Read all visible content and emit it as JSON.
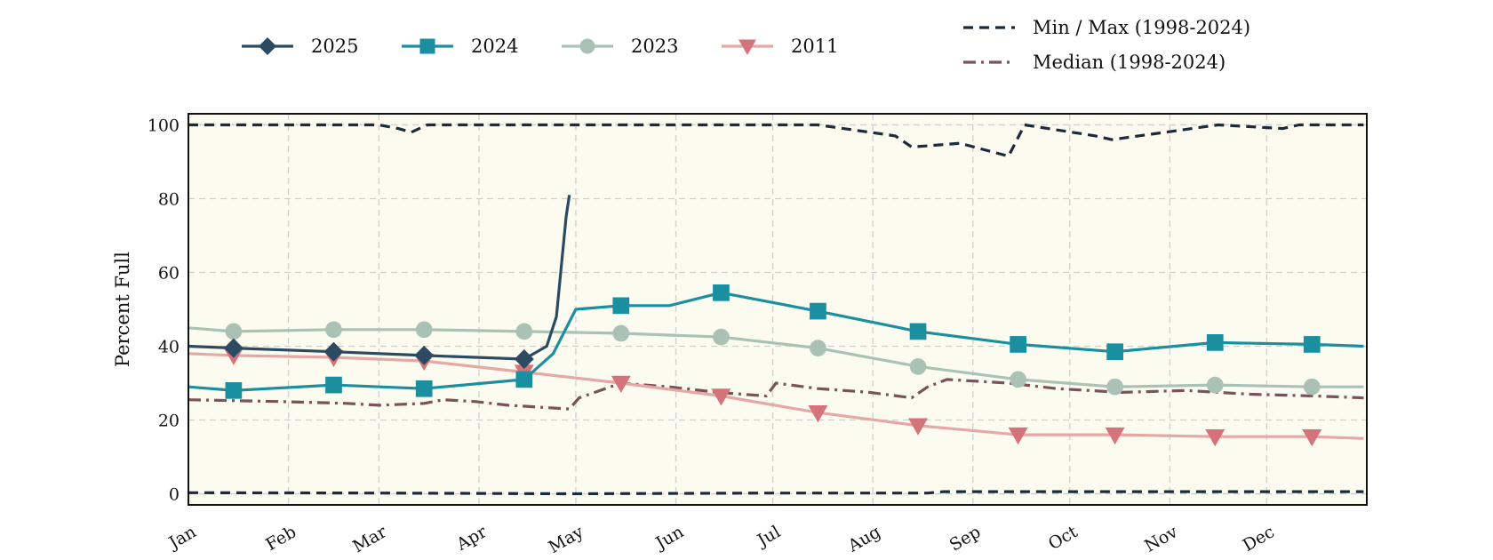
{
  "chart_data": {
    "type": "line",
    "title": "",
    "xlabel": "",
    "ylabel": "Percent Full",
    "ylim": [
      -3,
      103
    ],
    "x_ticks": [
      "Jan",
      "Feb",
      "Mar",
      "Apr",
      "May",
      "Jun",
      "Jul",
      "Aug",
      "Sep",
      "Oct",
      "Nov",
      "Dec"
    ],
    "y_ticks": [
      0,
      20,
      40,
      60,
      80,
      100
    ],
    "grid": true,
    "legend_placement": "top",
    "series": [
      {
        "name": "2025",
        "color": "#2d4a63",
        "style": "solid",
        "marker": "diamond",
        "x": [
          1,
          15,
          46,
          74,
          105,
          112,
          115,
          118,
          119,
          121
        ],
        "y": [
          40,
          39.5,
          38.5,
          37.5,
          36.5,
          40,
          48,
          75,
          81,
          null
        ]
      },
      {
        "name": "2024",
        "color": "#1a8fa0",
        "style": "solid",
        "marker": "square",
        "x": [
          1,
          15,
          46,
          74,
          105,
          114,
          121,
          135,
          150,
          166,
          196,
          227,
          258,
          288,
          319,
          349,
          365
        ],
        "y": [
          29,
          28,
          29.5,
          28.5,
          31,
          38,
          50,
          51,
          51,
          54.5,
          49.5,
          44,
          40.5,
          38.5,
          41,
          40.5,
          40
        ]
      },
      {
        "name": "2023",
        "color": "#a9c2b5",
        "style": "solid",
        "marker": "circle",
        "x": [
          1,
          15,
          46,
          74,
          105,
          135,
          166,
          196,
          227,
          258,
          288,
          319,
          349,
          365
        ],
        "y": [
          45,
          44,
          44.5,
          44.5,
          44,
          43.5,
          42.5,
          39.5,
          34.5,
          31,
          29,
          29.5,
          29,
          29
        ]
      },
      {
        "name": "2011",
        "color": "#d4737a",
        "line_color": "#e6a8a4",
        "style": "solid",
        "marker": "triangle-down",
        "x": [
          1,
          15,
          46,
          74,
          105,
          135,
          166,
          196,
          227,
          258,
          288,
          319,
          349,
          365
        ],
        "y": [
          38,
          37.5,
          37,
          36,
          33,
          30,
          26.5,
          22,
          18.5,
          16,
          16,
          15.5,
          15.5,
          15
        ]
      },
      {
        "name": "Min / Max (1998-2024)",
        "color": "#1c2b3a",
        "style": "dashed",
        "marker": "none",
        "x": [
          1,
          60,
          66,
          70,
          75,
          196,
          220,
          225,
          240,
          255,
          260,
          282,
          287,
          320,
          340,
          345,
          365
        ],
        "y": [
          100,
          100,
          99,
          98,
          100,
          100,
          97,
          94,
          95,
          91.5,
          100,
          97,
          96,
          100,
          99,
          100,
          100
        ],
        "x_min": [
          1,
          60,
          120,
          180,
          230,
          235,
          365
        ],
        "y_min": [
          0.3,
          0.2,
          0,
          0.2,
          0.2,
          0.6,
          0.6
        ]
      },
      {
        "name": "Median (1998-2024)",
        "color": "#7a5259",
        "style": "dashdot",
        "marker": "none",
        "x": [
          1,
          30,
          50,
          60,
          74,
          80,
          90,
          100,
          119,
          122,
          135,
          150,
          165,
          180,
          183,
          196,
          212,
          225,
          230,
          236,
          255,
          270,
          290,
          310,
          330,
          350,
          365
        ],
        "y": [
          25.5,
          25,
          24.5,
          24,
          24.5,
          25.5,
          25,
          24,
          23,
          26,
          30,
          29,
          27.5,
          26.5,
          30,
          28.5,
          27.5,
          26,
          29,
          31,
          30,
          28.5,
          27.5,
          28,
          27,
          26.5,
          26
        ]
      }
    ]
  }
}
